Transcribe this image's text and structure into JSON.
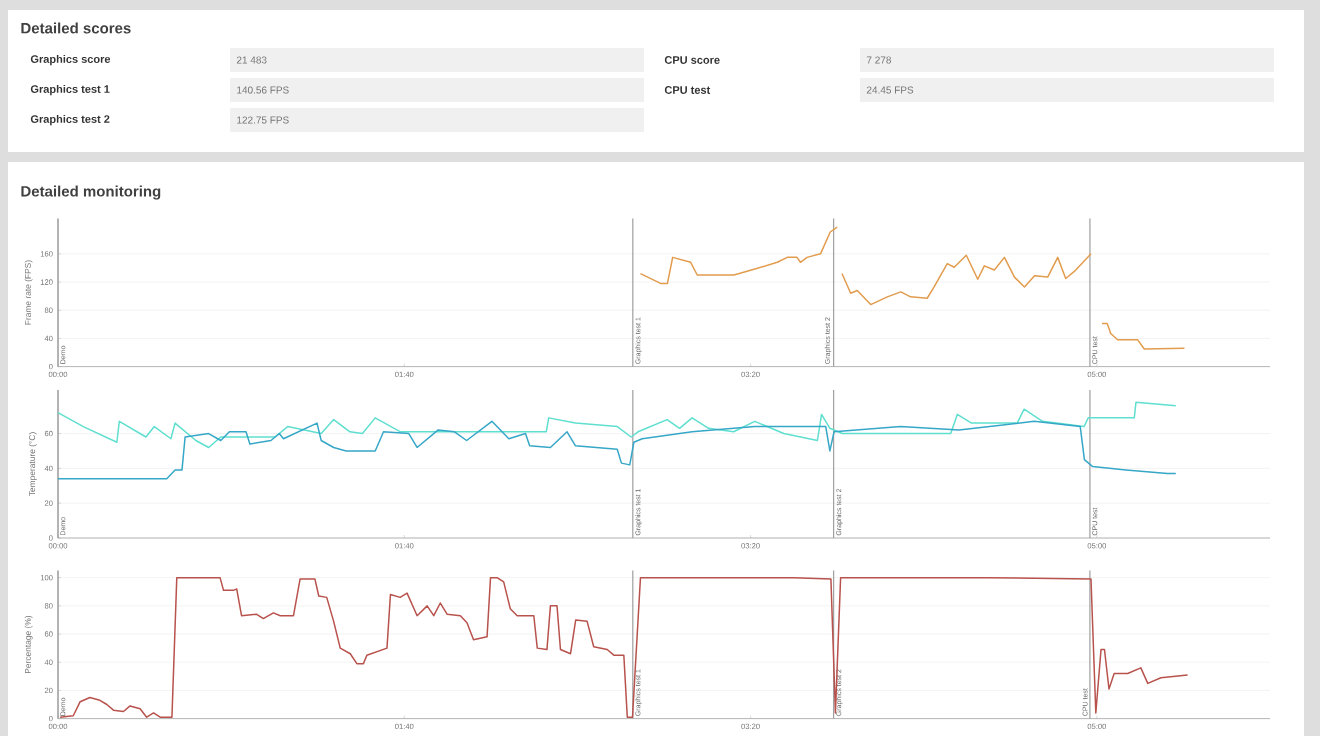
{
  "chart_data": [
    {
      "type": "other",
      "title": "Detailed scores",
      "annotations": [
        "Graphics score",
        "21 483",
        "Graphics test 1",
        "140.56 FPS",
        "Graphics test 2",
        "122.75 FPS",
        "CPU score",
        "7 278",
        "CPU test",
        "24.45 FPS"
      ]
    },
    {
      "type": "line",
      "title": "Detailed monitoring",
      "ylabel": "Frame rate (FPS)",
      "xlim": [
        0,
        350
      ],
      "ylim": [
        0,
        210
      ],
      "xticks": [
        {
          "value": 0,
          "label": "00:00"
        },
        {
          "value": 100,
          "label": "01:40"
        },
        {
          "value": 200,
          "label": "03:20"
        },
        {
          "value": 300,
          "label": "05:00"
        }
      ],
      "yticks": [
        0,
        40,
        80,
        120,
        160
      ],
      "grid": "y",
      "ref_lines": [
        {
          "axis": "x",
          "value": 0,
          "label": "Demo"
        },
        {
          "axis": "x",
          "value": 166,
          "label": "Graphics test 1"
        },
        {
          "axis": "x",
          "value": 224,
          "label": "Graphics test 2"
        },
        {
          "axis": "x",
          "value": 298,
          "label": "CPU test"
        }
      ],
      "series": [
        {
          "color": "#e29c4e",
          "x": [
            168.2,
            174,
            176,
            177.5,
            182.7,
            184.6,
            195.2,
            201,
            207.7,
            210.6,
            213.4,
            214.4,
            216.3,
            220.2,
            223,
            225,
            225.7,
            226.4,
            228.9,
            230.8,
            234.7,
            239.5,
            243.4,
            246.2,
            251,
            253,
            256.8,
            258.8,
            262.3,
            265.6,
            267.5,
            270.4,
            273.3,
            276.2,
            279.1,
            282,
            285.8,
            288.7,
            291,
            293.5,
            298.3,
            300,
            301.5,
            303,
            304,
            306,
            311.8,
            313.7,
            325.3
          ],
          "values": [
            132,
            118,
            118,
            155,
            148,
            130,
            130,
            138,
            148,
            155,
            155,
            148,
            155,
            160,
            191,
            198,
            null,
            132,
            104,
            108,
            88,
            99,
            106,
            99,
            97,
            113,
            146,
            141,
            158,
            124,
            143,
            137,
            155,
            127,
            113,
            129,
            127,
            155,
            125,
            135,
            160,
            null,
            61,
            61,
            47,
            38,
            38,
            25,
            26
          ]
        }
      ]
    },
    {
      "type": "line",
      "ylabel": "Temperature (°C)",
      "xlim": [
        0,
        350
      ],
      "ylim": [
        0,
        85
      ],
      "xticks": [
        {
          "value": 0,
          "label": "00:00"
        },
        {
          "value": 100,
          "label": "01:40"
        },
        {
          "value": 200,
          "label": "03:20"
        },
        {
          "value": 300,
          "label": "05:00"
        }
      ],
      "yticks": [
        0,
        20,
        40,
        60
      ],
      "grid": "y",
      "ref_lines": [
        {
          "axis": "x",
          "value": 0,
          "label": "Demo"
        },
        {
          "axis": "x",
          "value": 166,
          "label": "Graphics test 1"
        },
        {
          "axis": "x",
          "value": 224,
          "label": "Graphics test 2"
        },
        {
          "axis": "x",
          "value": 298,
          "label": "CPU test"
        }
      ],
      "series": [
        {
          "color": "#5fdfcf",
          "x": [
            0,
            7.3,
            17,
            17.7,
            25.4,
            27.8,
            32.6,
            33.8,
            39.8,
            43.5,
            47,
            62.7,
            66.3,
            76,
            79.6,
            84.3,
            87.9,
            91.6,
            98.9,
            115.7,
            141,
            141.7,
            149.4,
            161.5,
            165.5,
            167.5,
            175.9,
            179.5,
            183.1,
            187.9,
            195.1,
            201.2,
            209.6,
            219.3,
            220.5,
            222.9,
            224.1,
            226.5,
            257.8,
            259.7,
            263.8,
            277,
            279,
            284.3,
            296.3,
            297.5,
            310.8,
            311.3,
            322.8
          ],
          "values": [
            72,
            64,
            55,
            67,
            58,
            64,
            57,
            66,
            56,
            52,
            58,
            58,
            64,
            60,
            68,
            61,
            60,
            69,
            61,
            61,
            61,
            69,
            66,
            64,
            58,
            61,
            68,
            63,
            69,
            63,
            61,
            67,
            60,
            56,
            71,
            63,
            62,
            60,
            60,
            71,
            66,
            66,
            74,
            67,
            64,
            69,
            69,
            78,
            76
          ]
        },
        {
          "color": "#36a7c7",
          "x": [
            0,
            31.4,
            33.8,
            35.8,
            36.7,
            43.5,
            47,
            49.5,
            54.3,
            55.4,
            61.5,
            63.9,
            65.1,
            74.8,
            76,
            79.6,
            83.2,
            91.6,
            94,
            101.3,
            103.7,
            109.7,
            114.5,
            118,
            125.3,
            130.2,
            135,
            136.2,
            142.2,
            147,
            149.4,
            161.5,
            162.7,
            165.1,
            166.3,
            168.7,
            183.1,
            201.2,
            221.7,
            222.9,
            224.1,
            243.3,
            260.2,
            281.9,
            295.2,
            296.4,
            298.8,
            308.4,
            320.4,
            322.8
          ],
          "values": [
            34,
            34,
            39,
            39,
            58,
            60,
            56,
            61,
            61,
            54,
            56,
            60,
            57,
            66,
            56,
            52,
            50,
            50,
            61,
            60,
            52,
            62,
            61,
            56,
            67,
            57,
            60,
            53,
            52,
            61,
            53,
            51,
            43,
            42,
            55,
            57,
            61,
            64,
            64,
            50,
            61,
            64,
            62,
            67,
            64,
            45,
            41,
            39,
            37,
            37
          ]
        }
      ]
    },
    {
      "type": "line",
      "ylabel": "Percentage (%)",
      "xlim": [
        0,
        350
      ],
      "ylim": [
        0,
        105
      ],
      "xticks": [
        {
          "value": 0,
          "label": "00:00"
        },
        {
          "value": 100,
          "label": "01:40"
        },
        {
          "value": 200,
          "label": "03:20"
        },
        {
          "value": 300,
          "label": "05:00"
        }
      ],
      "yticks": [
        0,
        20,
        40,
        60,
        80,
        100
      ],
      "grid": "y",
      "ref_lines": [
        {
          "axis": "x",
          "value": 0,
          "label": "Demo"
        },
        {
          "axis": "x",
          "value": 166,
          "label": "Graphics test 1"
        },
        {
          "axis": "x",
          "value": 224,
          "label": "Graphics test 2"
        },
        {
          "axis": "x",
          "value": 298,
          "label": "CPU test"
        }
      ],
      "series": [
        {
          "color": "#b8524c",
          "x": [
            0.6,
            4.4,
            6.4,
            9.2,
            12.1,
            14.1,
            16,
            18.9,
            20.8,
            23.7,
            25.6,
            27.6,
            29.5,
            32.9,
            34.3,
            46.8,
            47.8,
            50.7,
            51.6,
            53,
            57.4,
            59.3,
            62.2,
            64.2,
            68,
            69.9,
            74.2,
            75.3,
            77.6,
            79.6,
            81.5,
            84.4,
            86.3,
            88.2,
            89.2,
            95,
            96,
            98.8,
            100.8,
            103.7,
            106.6,
            108.5,
            110.4,
            112.4,
            116.2,
            118.1,
            120,
            123.9,
            124.9,
            126.8,
            128.7,
            130.6,
            132.6,
            137.4,
            138.4,
            141.2,
            142.2,
            144.1,
            145.1,
            148,
            149.5,
            152.8,
            154.7,
            158.6,
            160.5,
            163.4,
            164.4,
            165.9,
            168.2,
            212.6,
            223.2,
            224.5,
            226,
            268.5,
            298.3,
            299.7,
            301.2,
            302.2,
            303.5,
            305,
            308.9,
            312.7,
            314.7,
            318.5,
            326.2
          ],
          "values": [
            1,
            2,
            12,
            15,
            13,
            10,
            6,
            5,
            9,
            7,
            1,
            4,
            1,
            1,
            100,
            100,
            91,
            91,
            92,
            73,
            74,
            71,
            75,
            73,
            73,
            99,
            99,
            87,
            86,
            69,
            50,
            46,
            39,
            39,
            45,
            50,
            88,
            86,
            89,
            73,
            80,
            73,
            82,
            74,
            73,
            68,
            56,
            58,
            100,
            100,
            97,
            78,
            73,
            73,
            50,
            49,
            80,
            80,
            49,
            46,
            70,
            69,
            51,
            49,
            45,
            45,
            1,
            1,
            100,
            100,
            99,
            4,
            100,
            100,
            99,
            4,
            49,
            49,
            21,
            32,
            32,
            36,
            25,
            29,
            31
          ]
        }
      ]
    }
  ]
}
